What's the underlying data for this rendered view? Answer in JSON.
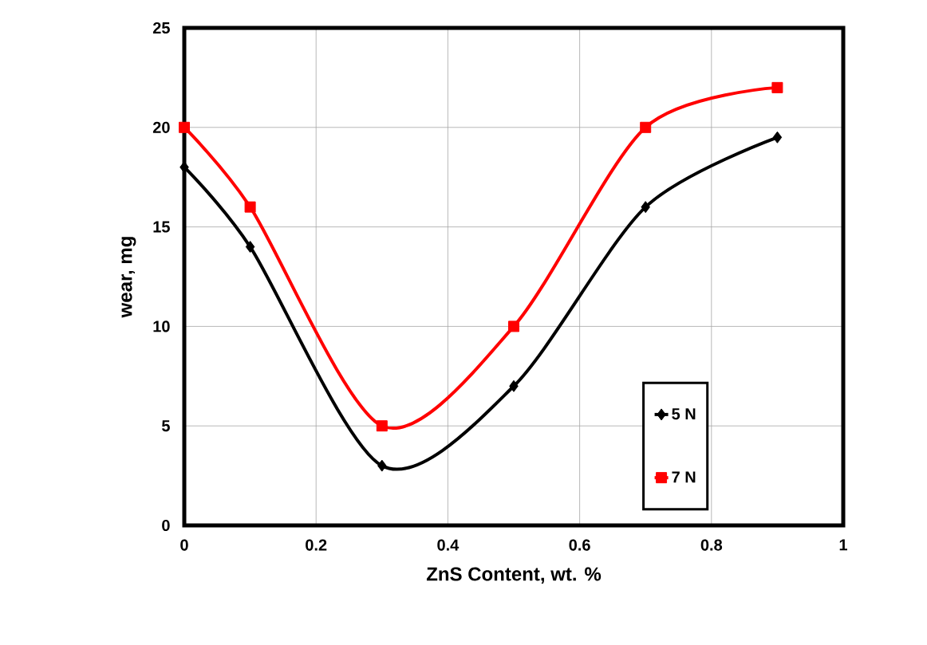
{
  "chart_data": {
    "type": "line",
    "xlabel": "ZnS Content, wt. %",
    "ylabel": "wear, mg",
    "x": [
      0,
      0.1,
      0.3,
      0.5,
      0.7,
      0.9
    ],
    "series": [
      {
        "name": "5 N",
        "color": "#000000",
        "marker": "diamond",
        "values": [
          18,
          14,
          3,
          7,
          16,
          19.5
        ]
      },
      {
        "name": "7 N",
        "color": "#ff0000",
        "marker": "square",
        "values": [
          20,
          16,
          5,
          10,
          20,
          22
        ]
      }
    ],
    "xlim": [
      0,
      1
    ],
    "xticks": [
      0,
      0.2,
      0.4,
      0.6,
      0.8,
      1
    ],
    "ylim": [
      0,
      25
    ],
    "yticks": [
      0,
      5,
      10,
      15,
      20,
      25
    ],
    "grid": true,
    "legend": "bottom right",
    "line_style": "solid"
  }
}
